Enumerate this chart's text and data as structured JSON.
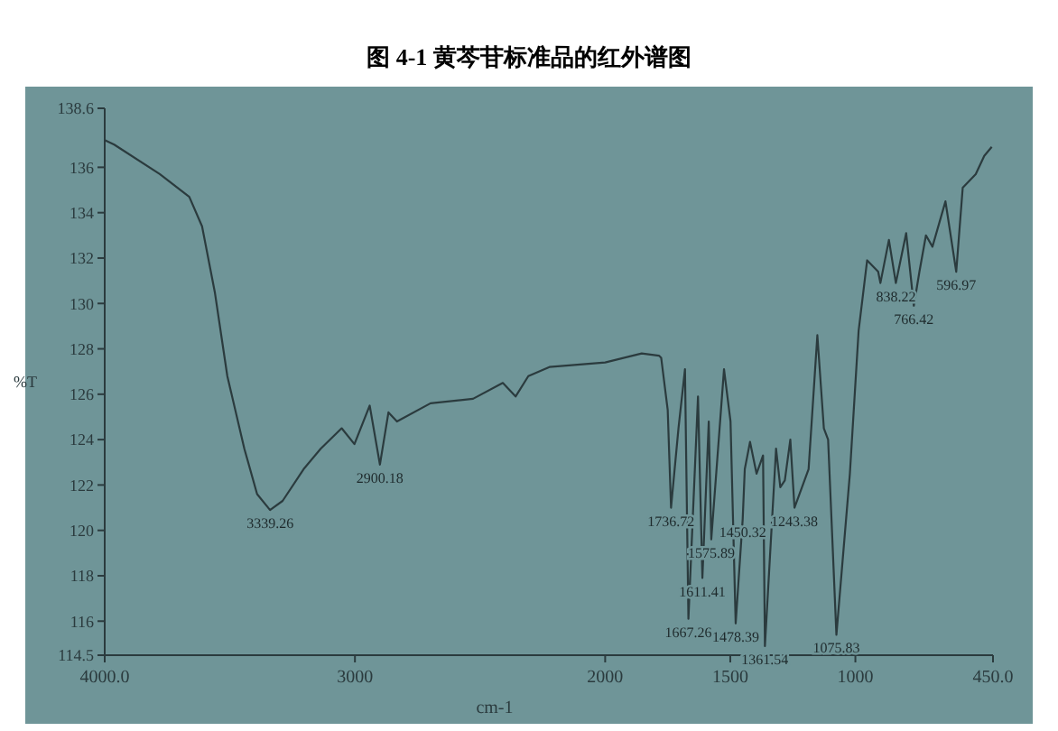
{
  "chart_data": {
    "type": "line",
    "title": "图 4-1  黄芩苷标准品的红外谱图",
    "xlabel": "cm-1",
    "ylabel": "%T",
    "xlim": [
      4000,
      450
    ],
    "ylim": [
      114.5,
      138.6
    ],
    "xticks": [
      {
        "value": 4000,
        "label": "4000.0"
      },
      3000,
      2000,
      1500,
      1000,
      {
        "value": 450,
        "label": "450.0"
      }
    ],
    "yticks": [
      114.5,
      116,
      118,
      120,
      122,
      124,
      126,
      128,
      130,
      132,
      134,
      136,
      138.6
    ],
    "grid": false,
    "marker": "none",
    "line_style": "solid",
    "series": [
      {
        "color": "#2b3b3e",
        "x": [
          4000,
          3962,
          3780,
          3662,
          3611,
          3560,
          3510,
          3442,
          3391,
          3339.26,
          3289,
          3205,
          3137,
          3053,
          3002,
          2941,
          2900.18,
          2866,
          2832,
          2698,
          2528,
          2409,
          2358,
          2307,
          2223,
          2000,
          1854,
          1785,
          1776,
          1750,
          1736.72,
          1707,
          1681,
          1667.26,
          1629,
          1611.41,
          1586,
          1575.89,
          1525,
          1499,
          1478.39,
          1450.32,
          1442,
          1421,
          1395,
          1369,
          1361.54,
          1317,
          1300,
          1282,
          1260,
          1243.38,
          1187,
          1152,
          1126,
          1109,
          1075.83,
          1022,
          987,
          953,
          909,
          900,
          866,
          838.22,
          797,
          766.42,
          744,
          718,
          692,
          640,
          596.97,
          571,
          519,
          485,
          455
        ],
        "values": [
          137.2,
          137.0,
          135.7,
          134.7,
          133.4,
          130.5,
          126.8,
          123.6,
          121.6,
          120.9,
          121.3,
          122.7,
          123.6,
          124.5,
          123.8,
          125.5,
          122.9,
          125.2,
          124.8,
          125.6,
          125.8,
          126.5,
          125.9,
          126.8,
          127.2,
          127.4,
          127.8,
          127.7,
          127.6,
          125.3,
          121.0,
          124.5,
          127.1,
          116.1,
          125.9,
          117.9,
          124.8,
          119.6,
          127.1,
          124.8,
          115.9,
          120.5,
          122.7,
          123.9,
          122.5,
          123.3,
          114.9,
          123.6,
          121.9,
          122.2,
          124.0,
          121.0,
          122.7,
          128.6,
          124.5,
          124.0,
          115.4,
          122.5,
          128.8,
          131.9,
          131.4,
          130.9,
          132.8,
          130.9,
          133.1,
          129.9,
          131.4,
          133.0,
          132.5,
          134.5,
          131.4,
          135.1,
          135.7,
          136.5,
          136.9
        ]
      }
    ],
    "annotations": [
      {
        "text": "3339.26",
        "x": 3339.26,
        "y": 120.9
      },
      {
        "text": "2900.18",
        "x": 2900.18,
        "y": 122.9
      },
      {
        "text": "1736.72",
        "x": 1736.72,
        "y": 121.0
      },
      {
        "text": "1667.26",
        "x": 1667.26,
        "y": 116.1
      },
      {
        "text": "1611.41",
        "x": 1611.41,
        "y": 117.9
      },
      {
        "text": "1575.89",
        "x": 1575.89,
        "y": 119.6
      },
      {
        "text": "1478.39",
        "x": 1478.39,
        "y": 115.9
      },
      {
        "text": "1450.32",
        "x": 1450.32,
        "y": 120.5
      },
      {
        "text": "1361.54",
        "x": 1361.54,
        "y": 114.9
      },
      {
        "text": "1243.38",
        "x": 1243.38,
        "y": 121.0
      },
      {
        "text": "1075.83",
        "x": 1075.83,
        "y": 115.4
      },
      {
        "text": "838.22",
        "x": 838.22,
        "y": 130.9
      },
      {
        "text": "766.42",
        "x": 766.42,
        "y": 129.9
      },
      {
        "text": "596.97",
        "x": 596.97,
        "y": 131.4
      }
    ]
  }
}
